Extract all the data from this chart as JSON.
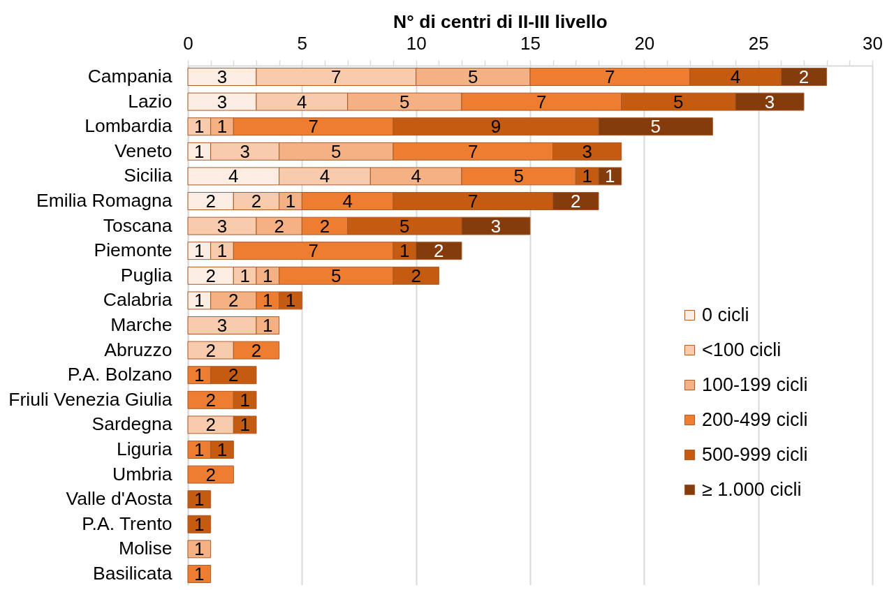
{
  "chart_data": {
    "type": "bar",
    "orientation": "horizontal",
    "stacked": true,
    "xlabel": "N° di centri di II-III livello",
    "categories": [
      "Campania",
      "Lazio",
      "Lombardia",
      "Veneto",
      "Sicilia",
      "Emilia Romagna",
      "Toscana",
      "Piemonte",
      "Puglia",
      "Calabria",
      "Marche",
      "Abruzzo",
      "P.A. Bolzano",
      "Friuli Venezia Giulia",
      "Sardegna",
      "Liguria",
      "Umbria",
      "Valle d'Aosta",
      "P.A. Trento",
      "Molise",
      "Basilicata"
    ],
    "series": [
      {
        "name": "0 cicli",
        "color": "#fcede3",
        "values": [
          3,
          3,
          null,
          1,
          4,
          2,
          null,
          1,
          2,
          1,
          null,
          null,
          null,
          null,
          null,
          null,
          null,
          null,
          null,
          null,
          null
        ]
      },
      {
        "name": "<100 cicli",
        "color": "#f8cbad",
        "values": [
          7,
          4,
          1,
          3,
          4,
          2,
          3,
          1,
          1,
          null,
          3,
          2,
          null,
          null,
          2,
          null,
          null,
          null,
          null,
          null,
          null
        ]
      },
      {
        "name": "100-199 cicli",
        "color": "#f4b183",
        "values": [
          5,
          5,
          1,
          5,
          4,
          1,
          2,
          null,
          1,
          2,
          1,
          null,
          null,
          null,
          null,
          null,
          null,
          null,
          null,
          1,
          null
        ]
      },
      {
        "name": "200-499 cicli",
        "color": "#ed7d31",
        "values": [
          7,
          7,
          7,
          7,
          5,
          4,
          2,
          7,
          5,
          1,
          null,
          2,
          1,
          2,
          null,
          1,
          2,
          null,
          null,
          null,
          1
        ]
      },
      {
        "name": "500-999 cicli",
        "color": "#c55a11",
        "values": [
          4,
          5,
          9,
          3,
          1,
          7,
          5,
          1,
          2,
          1,
          null,
          null,
          2,
          1,
          1,
          1,
          null,
          1,
          1,
          null,
          null
        ]
      },
      {
        "name": "≥ 1.000 cicli",
        "color": "#843c0c",
        "values": [
          2,
          3,
          5,
          null,
          1,
          2,
          3,
          2,
          null,
          null,
          null,
          null,
          null,
          null,
          null,
          null,
          null,
          null,
          null,
          null,
          null
        ]
      }
    ],
    "xlim": [
      0,
      30
    ],
    "xticks": [
      0,
      {
        "value": 1,
        "label": null
      },
      {
        "value": 2,
        "label": null
      },
      {
        "value": 3,
        "label": null
      },
      {
        "value": 4,
        "label": null
      },
      5,
      {
        "value": 6,
        "label": null
      },
      {
        "value": 7,
        "label": null
      },
      {
        "value": 8,
        "label": null
      },
      {
        "value": 9,
        "label": null
      },
      10,
      {
        "value": 11,
        "label": null
      },
      {
        "value": 12,
        "label": null
      },
      {
        "value": 13,
        "label": null
      },
      {
        "value": 14,
        "label": null
      },
      15,
      {
        "value": 16,
        "label": null
      },
      {
        "value": 17,
        "label": null
      },
      {
        "value": 18,
        "label": null
      },
      {
        "value": 19,
        "label": null
      },
      20,
      {
        "value": 21,
        "label": null
      },
      {
        "value": 22,
        "label": null
      },
      {
        "value": 23,
        "label": null
      },
      {
        "value": 24,
        "label": null
      },
      25,
      {
        "value": 26,
        "label": null
      },
      {
        "value": 27,
        "label": null
      },
      {
        "value": 28,
        "label": null
      },
      {
        "value": 29,
        "label": null
      },
      30
    ],
    "grid": "x",
    "legend": "bottom right",
    "data_labels": true
  }
}
